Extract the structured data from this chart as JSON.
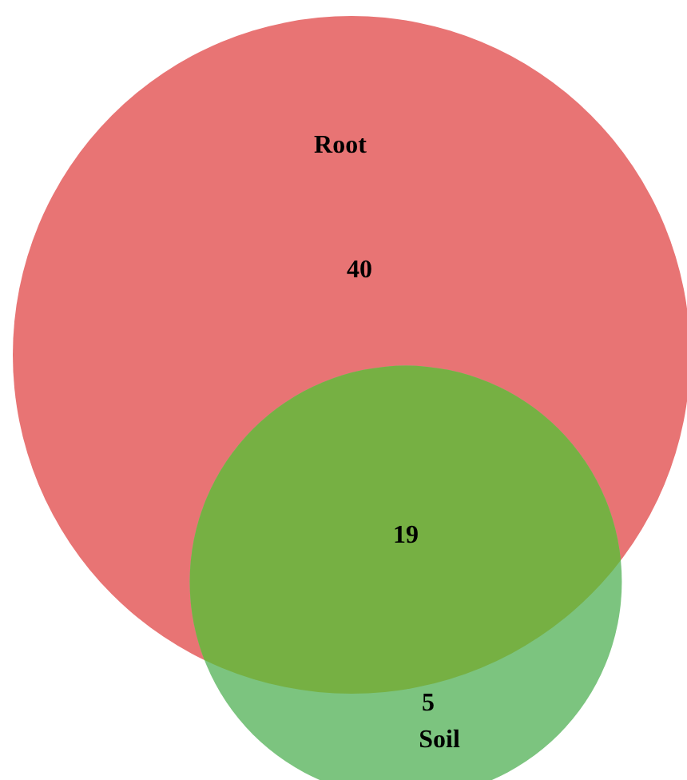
{
  "chart_data": {
    "type": "other",
    "categories": [
      "Root",
      null,
      "Soil"
    ],
    "values": [
      40,
      19,
      5
    ],
    "colors": [
      "#e87474",
      "#76b043",
      "#7cc47f"
    ],
    "data_labels": true
  }
}
